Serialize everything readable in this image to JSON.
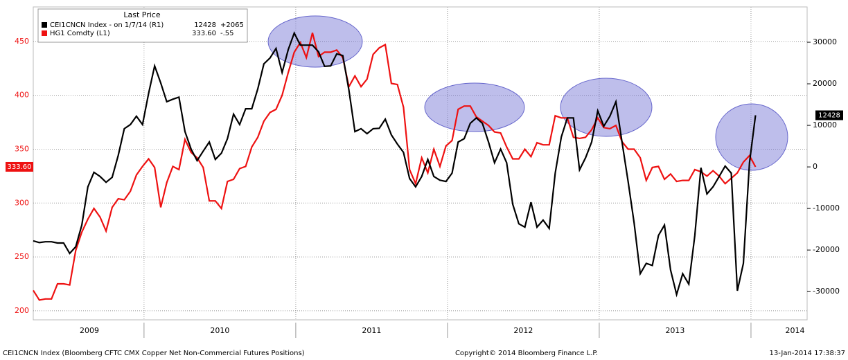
{
  "chart_data": {
    "type": "line",
    "legend_title": "Last Price",
    "footer_left": "CEI1CNCN Index (Bloomberg CFTC CMX Copper Net Non-Commercial Futures Positions)",
    "footer_center": "Copyright© 2014 Bloomberg Finance L.P.",
    "footer_right": "13-Jan-2014 17:38:37",
    "x": [
      2009.27,
      2009.31,
      2009.35,
      2009.39,
      2009.43,
      2009.47,
      2009.51,
      2009.55,
      2009.59,
      2009.63,
      2009.67,
      2009.71,
      2009.75,
      2009.79,
      2009.83,
      2009.87,
      2009.91,
      2009.95,
      2009.99,
      2010.03,
      2010.07,
      2010.11,
      2010.15,
      2010.19,
      2010.23,
      2010.27,
      2010.31,
      2010.35,
      2010.39,
      2010.43,
      2010.47,
      2010.51,
      2010.55,
      2010.59,
      2010.63,
      2010.67,
      2010.71,
      2010.75,
      2010.79,
      2010.83,
      2010.87,
      2010.91,
      2010.95,
      2010.99,
      2011.03,
      2011.07,
      2011.11,
      2011.15,
      2011.19,
      2011.23,
      2011.27,
      2011.31,
      2011.35,
      2011.39,
      2011.43,
      2011.47,
      2011.51,
      2011.55,
      2011.59,
      2011.63,
      2011.67,
      2011.71,
      2011.75,
      2011.79,
      2011.83,
      2011.87,
      2011.91,
      2011.95,
      2011.99,
      2012.03,
      2012.07,
      2012.11,
      2012.15,
      2012.19,
      2012.23,
      2012.27,
      2012.31,
      2012.35,
      2012.39,
      2012.43,
      2012.47,
      2012.51,
      2012.55,
      2012.59,
      2012.63,
      2012.67,
      2012.71,
      2012.75,
      2012.79,
      2012.83,
      2012.87,
      2012.91,
      2012.95,
      2012.99,
      2013.03,
      2013.07,
      2013.11,
      2013.15,
      2013.19,
      2013.23,
      2013.27,
      2013.31,
      2013.35,
      2013.39,
      2013.43,
      2013.47,
      2013.51,
      2013.55,
      2013.59,
      2013.63,
      2013.67,
      2013.71,
      2013.75,
      2013.79,
      2013.83,
      2013.87,
      2013.91,
      2013.95,
      2013.99,
      2014.03
    ],
    "xlim": [
      2009.27,
      2014.37
    ],
    "xticks": [
      2010,
      2011,
      2012,
      2013,
      2014
    ],
    "x_labels": [
      {
        "value": 2009.64,
        "label": "2009"
      },
      {
        "value": 2010.5,
        "label": "2010"
      },
      {
        "value": 2011.5,
        "label": "2011"
      },
      {
        "value": 2012.5,
        "label": "2012"
      },
      {
        "value": 2013.5,
        "label": "2013"
      },
      {
        "value": 2014.29,
        "label": "2014"
      }
    ],
    "ylim": [
      191.6,
      482
    ],
    "yticks": [
      200,
      250,
      300,
      350,
      400,
      450
    ],
    "y2lim": [
      -36800,
      38500
    ],
    "y2ticks": [
      -30000,
      -20000,
      -10000,
      0,
      10000,
      20000,
      30000
    ],
    "grid": true,
    "series": [
      {
        "name": "CEI1CNCN Index - on 1/7/14 (R1)",
        "color": "#000000",
        "axis": "y2",
        "change": "+2065",
        "values": [
          -17800,
          -18200,
          -18000,
          -18000,
          -18300,
          -18300,
          -20800,
          -19200,
          -14000,
          -4800,
          -1300,
          -2300,
          -3700,
          -2500,
          2800,
          9200,
          10200,
          12200,
          10200,
          17700,
          24300,
          20200,
          15700,
          16300,
          16800,
          8500,
          4300,
          1500,
          3800,
          6000,
          1800,
          3300,
          6800,
          12700,
          10200,
          14000,
          14000,
          18800,
          24800,
          26200,
          28500,
          22700,
          28200,
          32200,
          29300,
          29300,
          29300,
          27700,
          24200,
          24300,
          27200,
          26800,
          18500,
          8500,
          9200,
          8000,
          9200,
          9300,
          11500,
          7700,
          5500,
          3500,
          -2800,
          -4800,
          -2300,
          1800,
          -2300,
          -3200,
          -3500,
          -1500,
          6000,
          6800,
          10500,
          11800,
          10500,
          6000,
          1000,
          4300,
          1000,
          -9000,
          -13700,
          -14500,
          -8500,
          -14500,
          -12800,
          -14800,
          -1500,
          7200,
          11800,
          11800,
          -700,
          2200,
          6000,
          13500,
          9800,
          12200,
          15700,
          6000,
          -3500,
          -13500,
          -25700,
          -23200,
          -23700,
          -16500,
          -14000,
          -24800,
          -30700,
          -25700,
          -28200,
          -16500,
          -200,
          -6500,
          -4800,
          -2300,
          200,
          -1500,
          -29800,
          -23200,
          1000,
          12428
        ]
      },
      {
        "name": "HG1 Comdty (L1)",
        "color": "#ee1111",
        "axis": "y",
        "change": "-.55",
        "last_label": "333.60",
        "values": [
          219,
          210,
          211,
          211,
          225,
          225,
          224,
          256,
          273,
          285,
          295,
          287,
          274,
          296,
          304,
          303,
          311,
          326,
          334,
          341,
          333,
          296,
          319,
          334,
          331,
          359,
          347,
          342,
          333,
          302,
          302,
          295,
          320,
          322,
          332,
          334,
          352,
          361,
          376,
          384,
          387,
          400,
          421,
          440,
          449,
          435,
          458,
          436,
          440,
          440,
          442,
          435,
          408,
          418,
          408,
          415,
          438,
          444,
          447,
          411,
          410,
          389,
          331,
          318,
          342,
          328,
          350,
          334,
          353,
          358,
          387,
          390,
          390,
          380,
          376,
          372,
          366,
          365,
          352,
          341,
          341,
          350,
          343,
          356,
          354,
          354,
          381,
          379,
          379,
          361,
          360,
          361,
          368,
          379,
          370,
          369,
          372,
          357,
          350,
          350,
          342,
          321,
          333,
          334,
          322,
          327,
          320,
          321,
          321,
          331,
          329,
          325,
          330,
          325,
          318,
          323,
          328,
          338,
          344,
          333.6
        ]
      }
    ]
  }
}
